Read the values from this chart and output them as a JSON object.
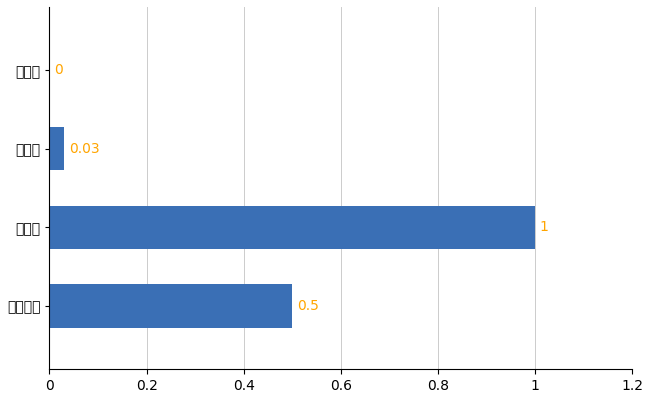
{
  "categories": [
    "土佐町",
    "県平均",
    "県最大",
    "全国平均"
  ],
  "values": [
    0,
    0.03,
    1,
    0.5
  ],
  "bar_color": "#3A6FB5",
  "label_color": "#FFA500",
  "value_labels": [
    "0",
    "0.03",
    "1",
    "0.5"
  ],
  "xlim": [
    0,
    1.2
  ],
  "xticks": [
    0,
    0.2,
    0.4,
    0.6,
    0.8,
    1.0,
    1.2
  ],
  "figsize": [
    6.5,
    4.0
  ],
  "dpi": 100,
  "bar_height": 0.55,
  "label_fontsize": 10,
  "tick_fontsize": 10,
  "grid_color": "#cccccc",
  "bg_color": "#ffffff"
}
